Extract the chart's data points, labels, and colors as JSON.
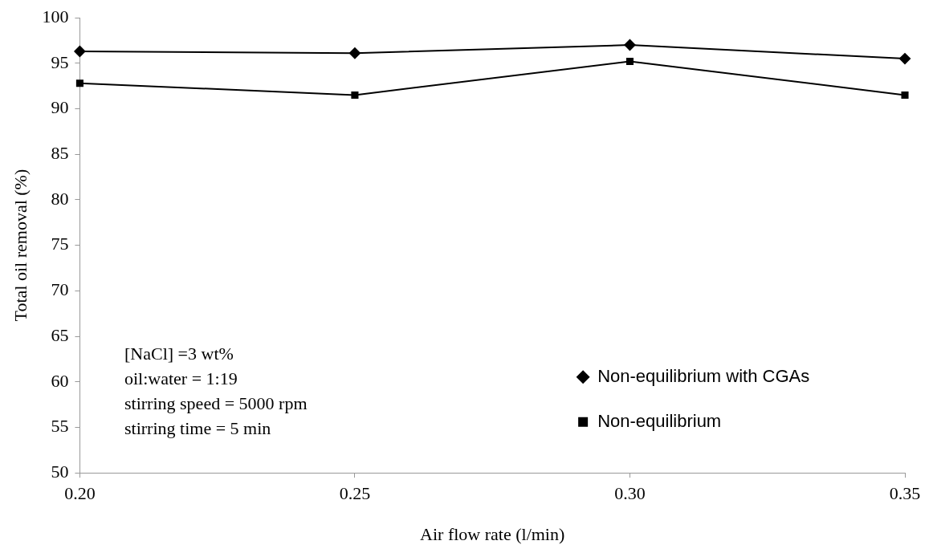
{
  "chart_data": {
    "type": "line",
    "xlabel": "Air flow rate (l/min)",
    "ylabel": "Total oil removal (%)",
    "x": [
      0.2,
      0.25,
      0.3,
      0.35
    ],
    "series": [
      {
        "name": "Non-equilibrium with CGAs",
        "color": "#000000",
        "marker": "diamond",
        "values": [
          96.3,
          96.1,
          97.0,
          95.5
        ]
      },
      {
        "name": "Non-equilibrium",
        "color": "#000000",
        "marker": "square",
        "values": [
          92.8,
          91.5,
          95.2,
          91.5
        ]
      }
    ],
    "xlim": [
      0.2,
      0.35
    ],
    "xticks": [
      {
        "value": 0.2,
        "label": "0.20"
      },
      {
        "value": 0.25,
        "label": "0.25"
      },
      {
        "value": 0.3,
        "label": "0.30"
      },
      {
        "value": 0.35,
        "label": "0.35"
      }
    ],
    "ylim": [
      50,
      100
    ],
    "yticks": [
      50,
      55,
      60,
      65,
      70,
      75,
      80,
      85,
      90,
      95,
      100
    ],
    "grid": false,
    "legend": "right",
    "line_style": "solid",
    "annotations": [
      "[NaCl] =3 wt%",
      "oil:water = 1:19",
      "stirring speed = 5000 rpm",
      "stirring time = 5 min"
    ]
  }
}
